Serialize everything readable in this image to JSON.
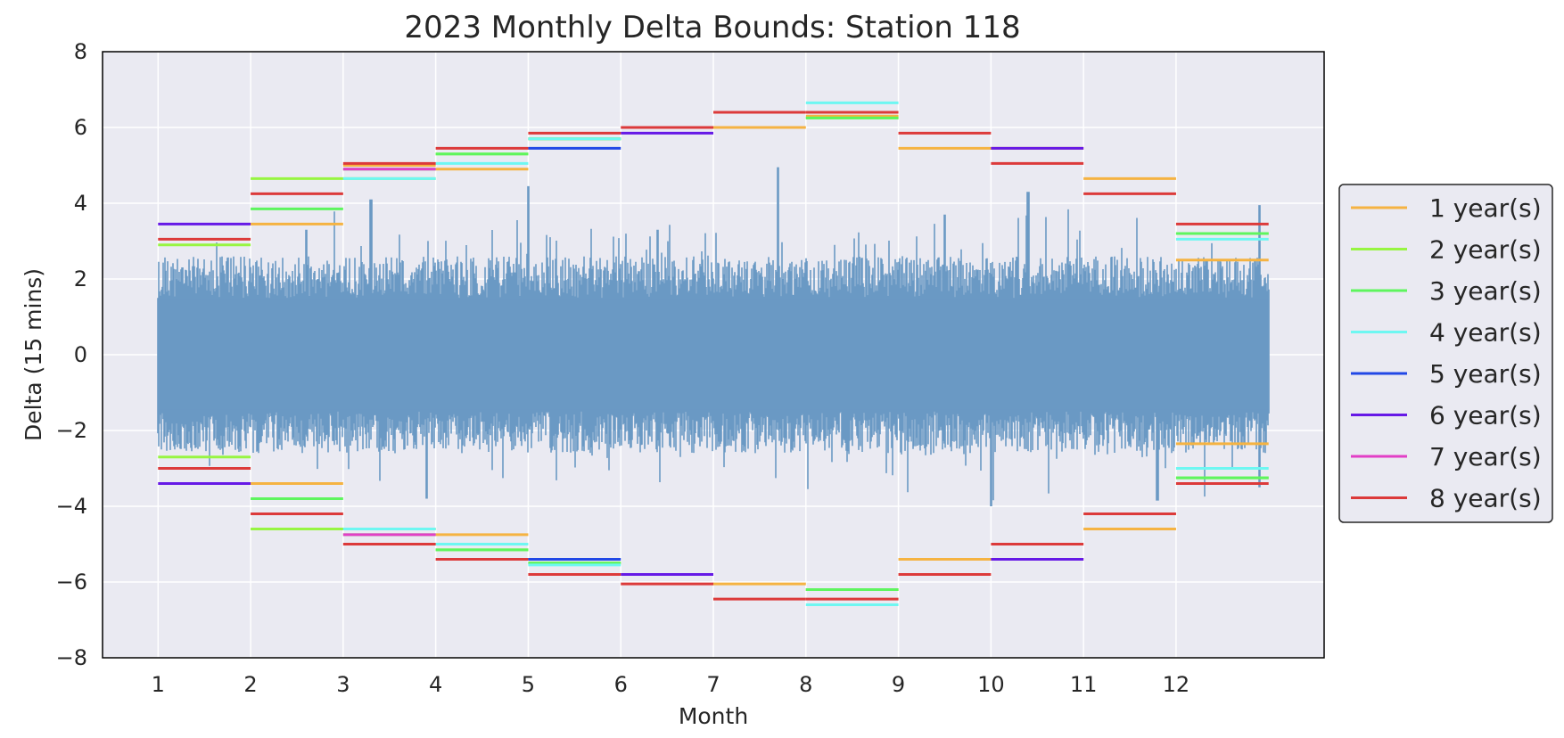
{
  "chart_data": {
    "type": "line",
    "title": "2023 Monthly Delta Bounds: Station 118",
    "xlabel": "Month",
    "ylabel": "Delta (15 mins)",
    "xlim": [
      0.4,
      13.6
    ],
    "ylim": [
      -8,
      8
    ],
    "x_ticks": [
      1,
      2,
      3,
      4,
      5,
      6,
      7,
      8,
      9,
      10,
      11,
      12
    ],
    "y_ticks": [
      -8,
      -6,
      -4,
      -2,
      0,
      2,
      4,
      6,
      8
    ],
    "grid": true,
    "legend_position": "center-right outside",
    "signal": {
      "color": "#6a99c4",
      "x_start": 1,
      "x_end": 13,
      "typical_envelope": [
        -2.2,
        2.2
      ],
      "spikes": [
        {
          "x": 2.6,
          "y": 3.3
        },
        {
          "x": 3.3,
          "y": 4.1
        },
        {
          "x": 3.9,
          "y": -3.8
        },
        {
          "x": 5.0,
          "y": 4.45
        },
        {
          "x": 6.4,
          "y": 3.3
        },
        {
          "x": 7.7,
          "y": 4.95
        },
        {
          "x": 9.5,
          "y": 3.7
        },
        {
          "x": 10.0,
          "y": -4.0
        },
        {
          "x": 10.4,
          "y": 4.3
        },
        {
          "x": 11.8,
          "y": -3.85
        },
        {
          "x": 12.9,
          "y": 3.95
        },
        {
          "x": 12.9,
          "y": -3.5
        }
      ]
    },
    "series": [
      {
        "name": "1 year(s)",
        "color": "#f5b342",
        "upper": [
          null,
          3.45,
          5.0,
          4.9,
          5.7,
          null,
          6.0,
          6.3,
          5.45,
          5.45,
          4.65,
          2.5
        ],
        "lower": [
          null,
          -3.4,
          -4.6,
          -4.75,
          -5.5,
          null,
          -6.05,
          -6.2,
          -5.4,
          -5.4,
          -4.6,
          -2.35
        ]
      },
      {
        "name": "2 year(s)",
        "color": "#97f542",
        "upper": [
          2.9,
          4.65,
          4.65,
          5.3,
          5.7,
          null,
          null,
          6.25,
          null,
          null,
          null,
          3.2
        ],
        "lower": [
          -2.7,
          -4.6,
          -4.6,
          -5.15,
          -5.5,
          null,
          null,
          -6.2,
          null,
          null,
          null,
          -3.25
        ]
      },
      {
        "name": "3 year(s)",
        "color": "#5ef55e",
        "upper": [
          null,
          3.85,
          4.9,
          5.3,
          5.7,
          null,
          null,
          6.25,
          null,
          null,
          null,
          3.2
        ],
        "lower": [
          null,
          -3.8,
          -4.75,
          -5.15,
          -5.5,
          null,
          null,
          -6.2,
          null,
          null,
          null,
          -3.25
        ]
      },
      {
        "name": "4 year(s)",
        "color": "#6ef7f2",
        "upper": [
          null,
          null,
          4.65,
          5.05,
          5.7,
          null,
          null,
          6.65,
          null,
          null,
          null,
          3.05
        ],
        "lower": [
          null,
          null,
          -4.6,
          -5.0,
          -5.55,
          null,
          null,
          -6.6,
          null,
          null,
          null,
          -3.0
        ]
      },
      {
        "name": "5 year(s)",
        "color": "#2148e6",
        "upper": [
          null,
          null,
          null,
          null,
          5.45,
          null,
          null,
          null,
          null,
          null,
          null,
          null
        ],
        "lower": [
          null,
          null,
          null,
          null,
          -5.4,
          null,
          null,
          null,
          null,
          null,
          null,
          null
        ]
      },
      {
        "name": "6 year(s)",
        "color": "#6619e6",
        "upper": [
          3.45,
          null,
          null,
          null,
          null,
          5.85,
          null,
          null,
          null,
          5.45,
          null,
          null
        ],
        "lower": [
          -3.4,
          null,
          null,
          null,
          null,
          -5.8,
          null,
          null,
          null,
          -5.4,
          null,
          null
        ]
      },
      {
        "name": "7 year(s)",
        "color": "#e23fc6",
        "upper": [
          null,
          null,
          4.9,
          null,
          null,
          null,
          null,
          null,
          null,
          null,
          null,
          null
        ],
        "lower": [
          null,
          null,
          -4.75,
          null,
          null,
          null,
          null,
          null,
          null,
          null,
          null,
          null
        ]
      },
      {
        "name": "8 year(s)",
        "color": "#dc3a3a",
        "upper": [
          3.05,
          4.25,
          5.05,
          5.45,
          5.85,
          6.0,
          6.4,
          6.4,
          5.85,
          5.05,
          4.25,
          3.45
        ],
        "lower": [
          -3.0,
          -4.2,
          -5.0,
          -5.4,
          -5.8,
          -6.05,
          -6.45,
          -6.45,
          -5.8,
          -5.0,
          -4.2,
          -3.4
        ]
      }
    ]
  }
}
